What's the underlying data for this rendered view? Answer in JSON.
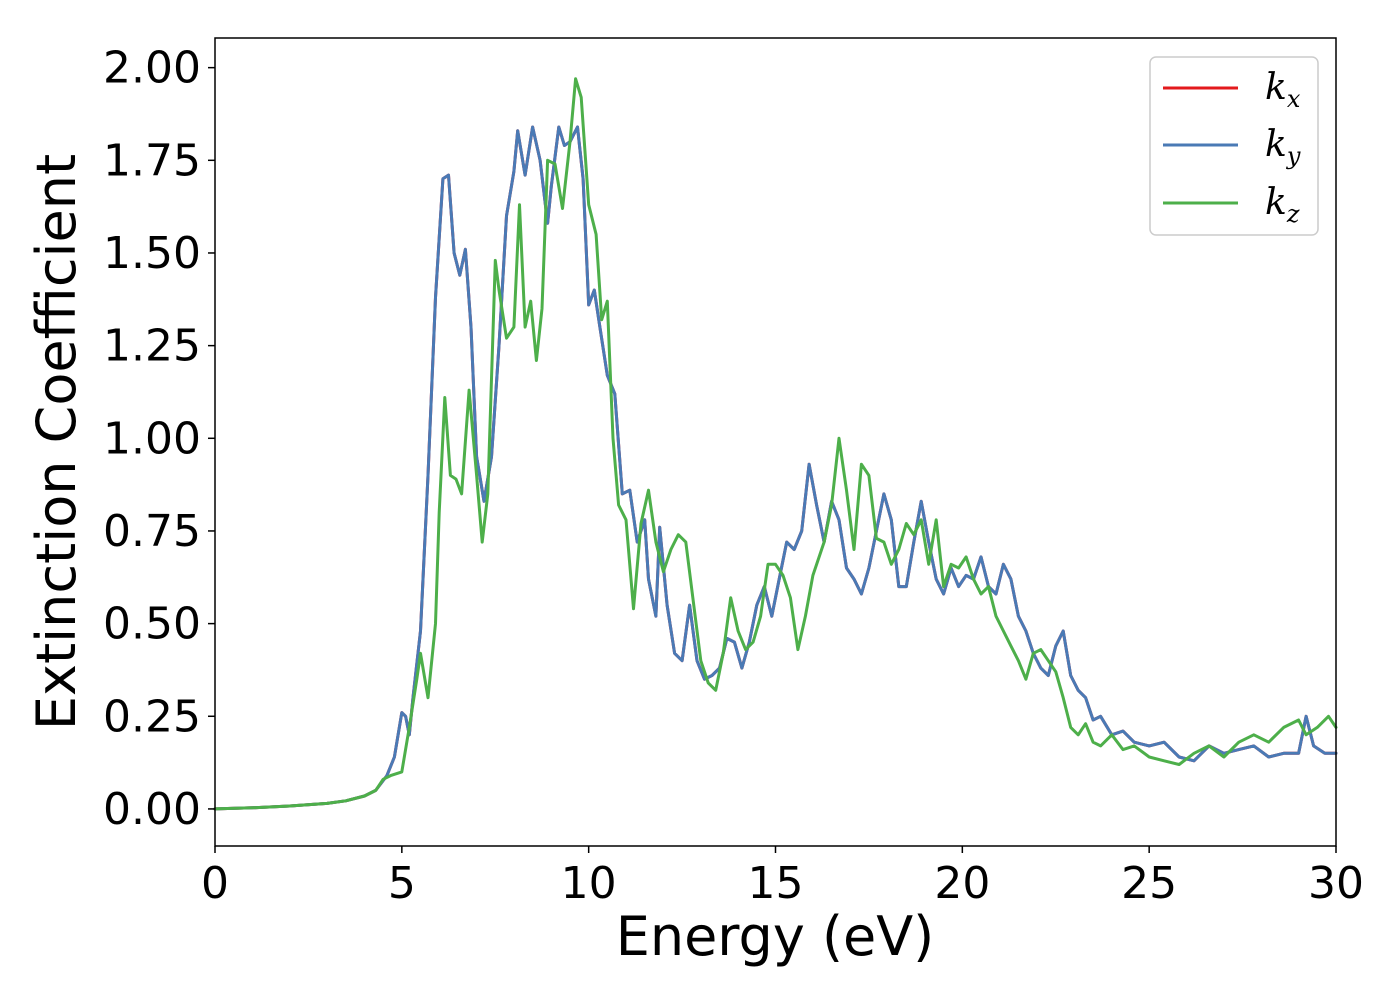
{
  "chart_data": {
    "type": "line",
    "xlabel": "Energy (eV)",
    "ylabel": "Extinction Coefficient",
    "xlim": [
      0,
      30
    ],
    "ylim": [
      -0.1,
      2.08
    ],
    "xticks": [
      0,
      5,
      10,
      15,
      20,
      25,
      30
    ],
    "yticks": [
      0.0,
      0.25,
      0.5,
      0.75,
      1.0,
      1.25,
      1.5,
      1.75,
      2.0
    ],
    "xtick_labels": [
      "0",
      "5",
      "10",
      "15",
      "20",
      "25",
      "30"
    ],
    "ytick_labels": [
      "0.00",
      "0.25",
      "0.50",
      "0.75",
      "1.00",
      "1.25",
      "1.50",
      "1.75",
      "2.00"
    ],
    "grid": false,
    "legend_position": "top-right",
    "series": [
      {
        "name": "k_x",
        "base": "k",
        "sub": "x",
        "color": "#e31a1c",
        "x": [
          0,
          1,
          2,
          3,
          3.5,
          4,
          4.3,
          4.6,
          4.8,
          5.0,
          5.1,
          5.2,
          5.3,
          5.5,
          5.7,
          5.9,
          6.1,
          6.25,
          6.4,
          6.55,
          6.7,
          6.85,
          7.0,
          7.2,
          7.4,
          7.6,
          7.8,
          8.0,
          8.1,
          8.3,
          8.5,
          8.7,
          8.9,
          9.0,
          9.2,
          9.35,
          9.5,
          9.7,
          9.85,
          10.0,
          10.15,
          10.3,
          10.5,
          10.7,
          10.9,
          11.1,
          11.3,
          11.5,
          11.6,
          11.8,
          11.9,
          12.1,
          12.3,
          12.5,
          12.7,
          12.9,
          13.1,
          13.3,
          13.5,
          13.7,
          13.9,
          14.1,
          14.3,
          14.5,
          14.7,
          14.9,
          15.1,
          15.3,
          15.5,
          15.7,
          15.9,
          16.1,
          16.3,
          16.5,
          16.7,
          16.9,
          17.1,
          17.3,
          17.5,
          17.7,
          17.9,
          18.1,
          18.3,
          18.5,
          18.7,
          18.9,
          19.1,
          19.3,
          19.5,
          19.7,
          19.9,
          20.1,
          20.3,
          20.5,
          20.7,
          20.9,
          21.1,
          21.3,
          21.5,
          21.7,
          21.9,
          22.1,
          22.3,
          22.5,
          22.7,
          22.9,
          23.1,
          23.3,
          23.5,
          23.7,
          24.0,
          24.3,
          24.6,
          25.0,
          25.4,
          25.8,
          26.2,
          26.6,
          27.0,
          27.4,
          27.8,
          28.2,
          28.6,
          29.0,
          29.2,
          29.4,
          29.7,
          30.0
        ],
        "y": [
          0.0,
          0.003,
          0.008,
          0.015,
          0.022,
          0.035,
          0.05,
          0.09,
          0.14,
          0.26,
          0.25,
          0.2,
          0.3,
          0.48,
          0.9,
          1.38,
          1.7,
          1.71,
          1.5,
          1.44,
          1.51,
          1.3,
          0.95,
          0.83,
          0.95,
          1.25,
          1.6,
          1.72,
          1.83,
          1.71,
          1.84,
          1.75,
          1.58,
          1.68,
          1.84,
          1.79,
          1.8,
          1.84,
          1.7,
          1.36,
          1.4,
          1.3,
          1.17,
          1.12,
          0.85,
          0.86,
          0.72,
          0.78,
          0.62,
          0.52,
          0.76,
          0.55,
          0.42,
          0.4,
          0.55,
          0.4,
          0.35,
          0.36,
          0.38,
          0.46,
          0.45,
          0.38,
          0.45,
          0.55,
          0.6,
          0.52,
          0.62,
          0.72,
          0.7,
          0.75,
          0.93,
          0.82,
          0.72,
          0.83,
          0.78,
          0.65,
          0.62,
          0.58,
          0.65,
          0.75,
          0.85,
          0.78,
          0.6,
          0.6,
          0.72,
          0.83,
          0.72,
          0.62,
          0.58,
          0.65,
          0.6,
          0.63,
          0.62,
          0.68,
          0.6,
          0.58,
          0.66,
          0.62,
          0.52,
          0.48,
          0.42,
          0.38,
          0.36,
          0.44,
          0.48,
          0.36,
          0.32,
          0.3,
          0.24,
          0.25,
          0.2,
          0.21,
          0.18,
          0.17,
          0.18,
          0.14,
          0.13,
          0.17,
          0.15,
          0.16,
          0.17,
          0.14,
          0.15,
          0.15,
          0.25,
          0.17,
          0.15,
          0.15
        ]
      },
      {
        "name": "k_y",
        "base": "k",
        "sub": "y",
        "color": "#4a7ab5",
        "x": [
          0,
          1,
          2,
          3,
          3.5,
          4,
          4.3,
          4.6,
          4.8,
          5.0,
          5.1,
          5.2,
          5.3,
          5.5,
          5.7,
          5.9,
          6.1,
          6.25,
          6.4,
          6.55,
          6.7,
          6.85,
          7.0,
          7.2,
          7.4,
          7.6,
          7.8,
          8.0,
          8.1,
          8.3,
          8.5,
          8.7,
          8.9,
          9.0,
          9.2,
          9.35,
          9.5,
          9.7,
          9.85,
          10.0,
          10.15,
          10.3,
          10.5,
          10.7,
          10.9,
          11.1,
          11.3,
          11.5,
          11.6,
          11.8,
          11.9,
          12.1,
          12.3,
          12.5,
          12.7,
          12.9,
          13.1,
          13.3,
          13.5,
          13.7,
          13.9,
          14.1,
          14.3,
          14.5,
          14.7,
          14.9,
          15.1,
          15.3,
          15.5,
          15.7,
          15.9,
          16.1,
          16.3,
          16.5,
          16.7,
          16.9,
          17.1,
          17.3,
          17.5,
          17.7,
          17.9,
          18.1,
          18.3,
          18.5,
          18.7,
          18.9,
          19.1,
          19.3,
          19.5,
          19.7,
          19.9,
          20.1,
          20.3,
          20.5,
          20.7,
          20.9,
          21.1,
          21.3,
          21.5,
          21.7,
          21.9,
          22.1,
          22.3,
          22.5,
          22.7,
          22.9,
          23.1,
          23.3,
          23.5,
          23.7,
          24.0,
          24.3,
          24.6,
          25.0,
          25.4,
          25.8,
          26.2,
          26.6,
          27.0,
          27.4,
          27.8,
          28.2,
          28.6,
          29.0,
          29.2,
          29.4,
          29.7,
          30.0
        ],
        "y": [
          0.0,
          0.003,
          0.008,
          0.015,
          0.022,
          0.035,
          0.05,
          0.09,
          0.14,
          0.26,
          0.25,
          0.2,
          0.3,
          0.48,
          0.9,
          1.38,
          1.7,
          1.71,
          1.5,
          1.44,
          1.51,
          1.3,
          0.95,
          0.83,
          0.95,
          1.25,
          1.6,
          1.72,
          1.83,
          1.71,
          1.84,
          1.75,
          1.58,
          1.68,
          1.84,
          1.79,
          1.8,
          1.84,
          1.7,
          1.36,
          1.4,
          1.3,
          1.17,
          1.12,
          0.85,
          0.86,
          0.72,
          0.78,
          0.62,
          0.52,
          0.76,
          0.55,
          0.42,
          0.4,
          0.55,
          0.4,
          0.35,
          0.36,
          0.38,
          0.46,
          0.45,
          0.38,
          0.45,
          0.55,
          0.6,
          0.52,
          0.62,
          0.72,
          0.7,
          0.75,
          0.93,
          0.82,
          0.72,
          0.83,
          0.78,
          0.65,
          0.62,
          0.58,
          0.65,
          0.75,
          0.85,
          0.78,
          0.6,
          0.6,
          0.72,
          0.83,
          0.72,
          0.62,
          0.58,
          0.65,
          0.6,
          0.63,
          0.62,
          0.68,
          0.6,
          0.58,
          0.66,
          0.62,
          0.52,
          0.48,
          0.42,
          0.38,
          0.36,
          0.44,
          0.48,
          0.36,
          0.32,
          0.3,
          0.24,
          0.25,
          0.2,
          0.21,
          0.18,
          0.17,
          0.18,
          0.14,
          0.13,
          0.17,
          0.15,
          0.16,
          0.17,
          0.14,
          0.15,
          0.15,
          0.25,
          0.17,
          0.15,
          0.15
        ]
      },
      {
        "name": "k_z",
        "base": "k",
        "sub": "z",
        "color": "#4daf4a",
        "x": [
          0,
          1,
          2,
          3,
          3.5,
          4,
          4.3,
          4.5,
          4.7,
          5.0,
          5.2,
          5.4,
          5.5,
          5.7,
          5.9,
          6.0,
          6.15,
          6.3,
          6.45,
          6.6,
          6.8,
          7.0,
          7.15,
          7.3,
          7.5,
          7.6,
          7.8,
          8.0,
          8.15,
          8.3,
          8.45,
          8.6,
          8.75,
          8.9,
          9.1,
          9.3,
          9.5,
          9.65,
          9.8,
          10.0,
          10.2,
          10.35,
          10.5,
          10.65,
          10.8,
          11.0,
          11.2,
          11.4,
          11.6,
          11.8,
          12.0,
          12.2,
          12.4,
          12.6,
          12.8,
          13.0,
          13.2,
          13.4,
          13.6,
          13.8,
          14.0,
          14.2,
          14.4,
          14.6,
          14.8,
          15.0,
          15.2,
          15.4,
          15.6,
          15.8,
          16.0,
          16.3,
          16.5,
          16.7,
          16.9,
          17.1,
          17.3,
          17.5,
          17.7,
          17.9,
          18.1,
          18.3,
          18.5,
          18.7,
          18.9,
          19.1,
          19.3,
          19.5,
          19.7,
          19.9,
          20.1,
          20.3,
          20.5,
          20.7,
          20.9,
          21.1,
          21.3,
          21.5,
          21.7,
          21.9,
          22.1,
          22.3,
          22.5,
          22.7,
          22.9,
          23.1,
          23.3,
          23.5,
          23.7,
          24.0,
          24.3,
          24.6,
          25.0,
          25.4,
          25.8,
          26.2,
          26.6,
          27.0,
          27.4,
          27.8,
          28.2,
          28.6,
          29.0,
          29.2,
          29.5,
          29.8,
          30.0
        ],
        "y": [
          0.0,
          0.003,
          0.008,
          0.015,
          0.022,
          0.035,
          0.05,
          0.08,
          0.09,
          0.1,
          0.22,
          0.35,
          0.42,
          0.3,
          0.5,
          0.8,
          1.11,
          0.9,
          0.89,
          0.85,
          1.13,
          0.9,
          0.72,
          0.85,
          1.48,
          1.4,
          1.27,
          1.3,
          1.63,
          1.3,
          1.37,
          1.21,
          1.35,
          1.75,
          1.74,
          1.62,
          1.8,
          1.97,
          1.92,
          1.63,
          1.55,
          1.32,
          1.37,
          1.0,
          0.82,
          0.78,
          0.54,
          0.77,
          0.86,
          0.72,
          0.64,
          0.7,
          0.74,
          0.72,
          0.56,
          0.4,
          0.34,
          0.32,
          0.42,
          0.57,
          0.48,
          0.43,
          0.45,
          0.52,
          0.66,
          0.66,
          0.63,
          0.57,
          0.43,
          0.52,
          0.63,
          0.72,
          0.82,
          1.0,
          0.86,
          0.7,
          0.93,
          0.9,
          0.73,
          0.72,
          0.66,
          0.7,
          0.77,
          0.74,
          0.78,
          0.66,
          0.78,
          0.6,
          0.66,
          0.65,
          0.68,
          0.62,
          0.58,
          0.6,
          0.52,
          0.48,
          0.44,
          0.4,
          0.35,
          0.42,
          0.43,
          0.4,
          0.37,
          0.3,
          0.22,
          0.2,
          0.23,
          0.18,
          0.17,
          0.2,
          0.16,
          0.17,
          0.14,
          0.13,
          0.12,
          0.15,
          0.17,
          0.14,
          0.18,
          0.2,
          0.18,
          0.22,
          0.24,
          0.2,
          0.22,
          0.25,
          0.22
        ]
      }
    ]
  }
}
